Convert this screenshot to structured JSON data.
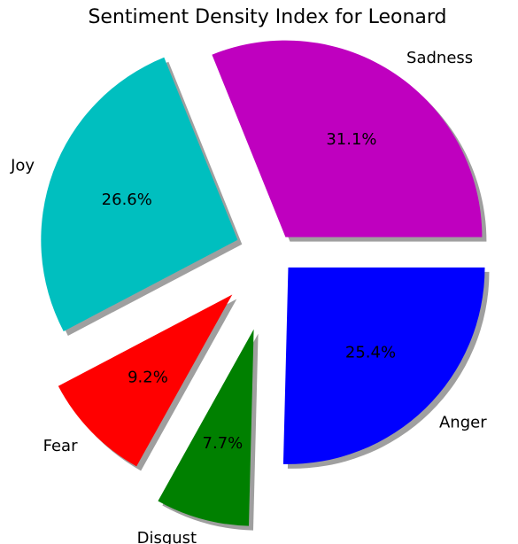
{
  "chart_data": {
    "type": "pie",
    "title": "Sentiment Density Index for Leonard",
    "labels": [
      "Sadness",
      "Joy",
      "Fear",
      "Disgust",
      "Anger"
    ],
    "values": [
      31.1,
      26.6,
      9.2,
      7.7,
      25.4
    ],
    "percent_labels": [
      "31.1%",
      "26.6%",
      "9.2%",
      "7.7%",
      "25.4%"
    ],
    "colors": [
      "#bf00bf",
      "#00bfbf",
      "#ff0000",
      "#008000",
      "#0000ff"
    ],
    "explode": [
      0.1,
      0.2,
      0.3,
      0.4,
      0.1
    ],
    "start_angle_deg": 0,
    "direction": "counterclockwise",
    "shadow": true,
    "legend": "none"
  }
}
